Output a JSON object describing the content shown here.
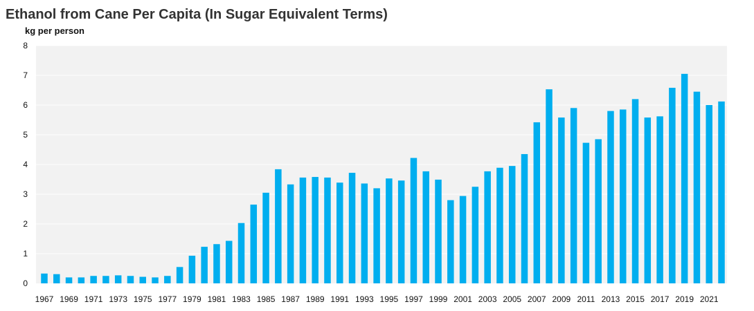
{
  "chart_data": {
    "type": "bar",
    "title": "Ethanol from Cane Per Capita (In Sugar Equivalent Terms)",
    "ylabel": "kg per person",
    "xlabel": "",
    "ylim": [
      0,
      8
    ],
    "yticks": [
      0,
      1,
      2,
      3,
      4,
      5,
      6,
      7,
      8
    ],
    "grid": true,
    "bar_color": "#00aeef",
    "plot_background": "#f2f2f2",
    "categories": [
      1967,
      1968,
      1969,
      1970,
      1971,
      1972,
      1973,
      1974,
      1975,
      1976,
      1977,
      1978,
      1979,
      1980,
      1981,
      1982,
      1983,
      1984,
      1985,
      1986,
      1987,
      1988,
      1989,
      1990,
      1991,
      1992,
      1993,
      1994,
      1995,
      1996,
      1997,
      1998,
      1999,
      2000,
      2001,
      2002,
      2003,
      2004,
      2005,
      2006,
      2007,
      2008,
      2009,
      2010,
      2011,
      2012,
      2013,
      2014,
      2015,
      2016,
      2017,
      2018,
      2019,
      2020,
      2021,
      2022
    ],
    "xtick_labels": [
      "1967",
      "1969",
      "1971",
      "1973",
      "1975",
      "1977",
      "1979",
      "1981",
      "1983",
      "1985",
      "1987",
      "1989",
      "1991",
      "1993",
      "1995",
      "1997",
      "1999",
      "2001",
      "2003",
      "2005",
      "2007",
      "2009",
      "2011",
      "2013",
      "2015",
      "2017",
      "2019",
      "2021"
    ],
    "values": [
      0.33,
      0.31,
      0.2,
      0.2,
      0.25,
      0.25,
      0.27,
      0.25,
      0.22,
      0.2,
      0.25,
      0.55,
      0.93,
      1.23,
      1.32,
      1.43,
      2.03,
      2.65,
      3.05,
      3.84,
      3.33,
      3.56,
      3.58,
      3.56,
      3.39,
      3.72,
      3.36,
      3.2,
      3.53,
      3.46,
      4.22,
      3.77,
      3.49,
      2.8,
      2.94,
      3.25,
      3.77,
      3.89,
      3.95,
      4.35,
      5.42,
      6.53,
      5.58,
      5.9,
      4.73,
      4.85,
      5.8,
      5.85,
      6.2,
      5.58,
      5.62,
      6.58,
      7.05,
      6.45,
      6.0,
      6.12
    ]
  }
}
